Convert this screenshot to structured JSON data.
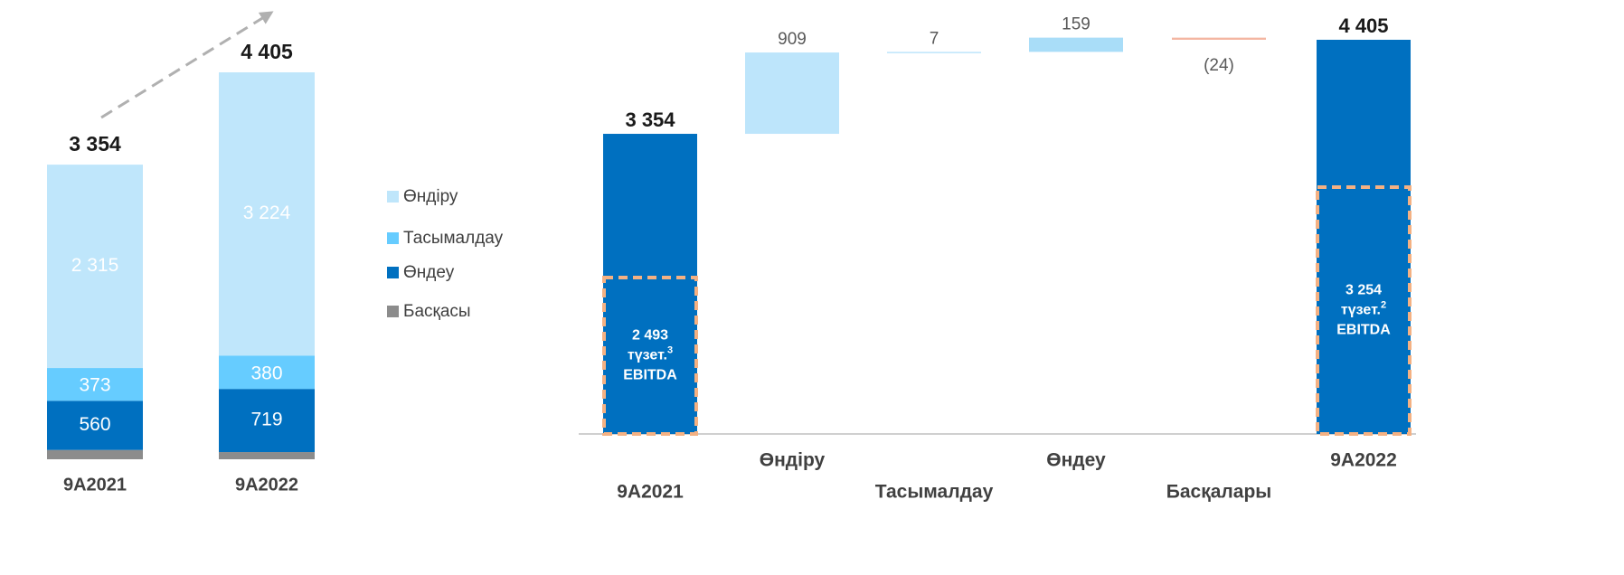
{
  "chart_data": [
    {
      "type": "stacked_bar",
      "categories": [
        "9A2021",
        "9A2022"
      ],
      "series": [
        {
          "name": "Басқасы",
          "color": "#8c8c8c",
          "values": [
            106,
            82
          ]
        },
        {
          "name": "Өндеу",
          "color": "#0070c0",
          "values": [
            560,
            719
          ],
          "value_labels": [
            "560",
            "719"
          ]
        },
        {
          "name": "Тасымалдау",
          "color": "#66ccff",
          "values": [
            373,
            380
          ],
          "value_labels": [
            "373",
            "380"
          ]
        },
        {
          "name": "Өндіру",
          "color": "#bfe6fb",
          "values": [
            2315,
            3224
          ],
          "value_labels": [
            "2 315",
            "3 224"
          ]
        }
      ],
      "totals": [
        3354,
        4405
      ],
      "total_labels": [
        "3 354",
        "4 405"
      ]
    },
    {
      "type": "waterfall",
      "categories": [
        "9A2021",
        "Өндіру",
        "Тасымалдау",
        "Өндеу",
        "Басқалары",
        "9A2022"
      ],
      "values": [
        3354,
        909,
        7,
        159,
        -24,
        4405
      ],
      "value_labels": [
        "3 354",
        "909",
        "7",
        "159",
        "(24)",
        "4 405"
      ],
      "measure": [
        "total",
        "relative",
        "relative",
        "relative",
        "relative",
        "total"
      ],
      "colors": [
        "#0070c0",
        "#bde5fb",
        "#bde5fb",
        "#a9ddf8",
        "#f4b6a2",
        "#0070c0"
      ],
      "annotations": [
        {
          "text": "2 493",
          "sub": "түзет.",
          "sup": "3",
          "note": "EBITDA"
        },
        {
          "text": "3 254",
          "sub": "түзет.",
          "sup": "2",
          "note": "EBITDA"
        }
      ]
    }
  ]
}
